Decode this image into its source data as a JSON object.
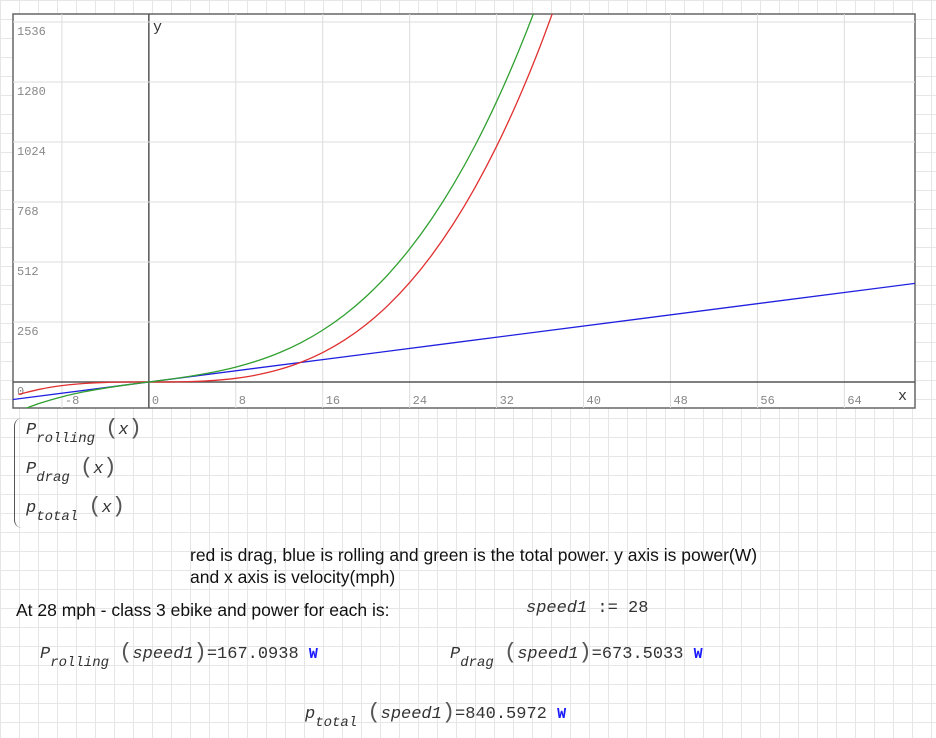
{
  "chart_data": {
    "type": "line",
    "xlabel": "x",
    "ylabel": "y",
    "xlim": [
      -12.5,
      70.5
    ],
    "ylim": [
      -111,
      1570
    ],
    "x_ticks": [
      -8,
      0,
      8,
      16,
      24,
      32,
      40,
      48,
      56,
      64
    ],
    "y_ticks": [
      0,
      256,
      512,
      768,
      1024,
      1280,
      1536
    ],
    "grid": true,
    "series": [
      {
        "color": "#2020e0",
        "x": [
          -12.5,
          0,
          28,
          70.5
        ],
        "y": [
          -74.6,
          0,
          167.1,
          420.7
        ]
      },
      {
        "color": "#e03030",
        "x": [
          -12,
          -10,
          -8,
          -6,
          -4,
          -2,
          0,
          2,
          4,
          6,
          8,
          10,
          12,
          14,
          16,
          18,
          20,
          22,
          24,
          26,
          28,
          30,
          32,
          34,
          36,
          38
        ],
        "y": [
          -53.0,
          -30.7,
          -15.7,
          -6.6,
          -2.0,
          -0.2,
          0,
          0.2,
          2.0,
          6.6,
          15.7,
          30.7,
          53.0,
          84.2,
          125.7,
          178.9,
          245.4,
          326.7,
          424.1,
          539.3,
          673.5,
          828.4,
          1005.4,
          1205.9,
          1431.5,
          1683.5
        ]
      },
      {
        "color": "#30a030",
        "x": [
          -12,
          -10,
          -8,
          -6,
          -4,
          -2,
          0,
          2,
          4,
          6,
          8,
          10,
          12,
          14,
          16,
          18,
          20,
          22,
          24,
          26,
          28,
          30,
          32,
          34,
          36,
          38
        ],
        "y": [
          -124.6,
          -90.4,
          -63.4,
          -42.4,
          -25.9,
          -12.1,
          0,
          12.1,
          25.9,
          42.4,
          63.4,
          90.4,
          124.6,
          167.7,
          221.2,
          286.3,
          364.8,
          458.0,
          567.3,
          694.5,
          840.6,
          1007.4,
          1196.4,
          1408.8,
          1646.3,
          1910.3
        ]
      }
    ]
  },
  "legend_funcs": [
    {
      "name": "P",
      "sub": "rolling",
      "arg": "x"
    },
    {
      "name": "P",
      "sub": "drag",
      "arg": "x"
    },
    {
      "name": "p",
      "sub": "total",
      "arg": "x"
    }
  ],
  "note_line1": "red is drag, blue is rolling and green is the total power. y axis is power(W)",
  "note_line2": "and x axis is velocity(mph)",
  "intro": "At 28 mph - class 3 ebike and power for each is:",
  "assign": {
    "var": "speed1",
    "op": ":=",
    "value": "28"
  },
  "results": [
    {
      "name": "P",
      "sub": "rolling",
      "arg": "speed1",
      "value": "167.0938",
      "unit": "W"
    },
    {
      "name": "P",
      "sub": "drag",
      "arg": "speed1",
      "value": "673.5033",
      "unit": "W"
    },
    {
      "name": "p",
      "sub": "total",
      "arg": "speed1",
      "value": "840.5972",
      "unit": "W"
    }
  ]
}
